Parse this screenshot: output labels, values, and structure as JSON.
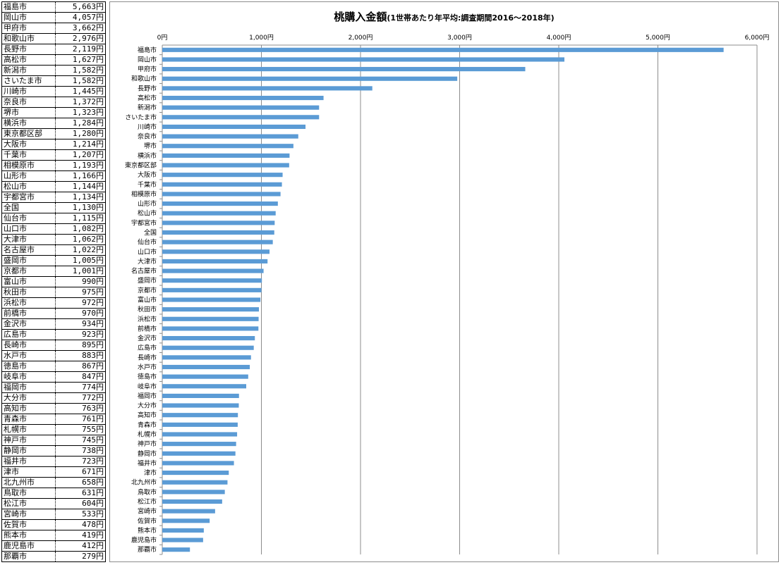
{
  "chart_data": {
    "type": "bar",
    "orientation": "horizontal",
    "title": "桃購入金額",
    "subtitle": "(1世帯あたり年平均:調査期間2016～2018年)",
    "xlim": [
      0,
      6000
    ],
    "x_ticks": [
      "0円",
      "1,000円",
      "2,000円",
      "3,000円",
      "4,000円",
      "5,000円",
      "6,000円"
    ],
    "x_tick_values": [
      0,
      1000,
      2000,
      3000,
      4000,
      5000,
      6000
    ],
    "grid": true,
    "bar_color": "#5b9bd5",
    "categories": [
      "福島市",
      "岡山市",
      "甲府市",
      "和歌山市",
      "長野市",
      "高松市",
      "新潟市",
      "さいたま市",
      "川崎市",
      "奈良市",
      "堺市",
      "横浜市",
      "東京都区部",
      "大阪市",
      "千葉市",
      "相模原市",
      "山形市",
      "松山市",
      "宇都宮市",
      "全国",
      "仙台市",
      "山口市",
      "大津市",
      "名古屋市",
      "盛岡市",
      "京都市",
      "富山市",
      "秋田市",
      "浜松市",
      "前橋市",
      "金沢市",
      "広島市",
      "長崎市",
      "水戸市",
      "徳島市",
      "岐阜市",
      "福岡市",
      "大分市",
      "高知市",
      "青森市",
      "札幌市",
      "神戸市",
      "静岡市",
      "福井市",
      "津市",
      "北九州市",
      "鳥取市",
      "松江市",
      "宮崎市",
      "佐賀市",
      "熊本市",
      "鹿児島市",
      "那覇市"
    ],
    "values": [
      5663,
      4057,
      3662,
      2976,
      2119,
      1627,
      1582,
      1582,
      1445,
      1372,
      1323,
      1284,
      1280,
      1214,
      1207,
      1193,
      1166,
      1144,
      1134,
      1130,
      1115,
      1082,
      1062,
      1022,
      1005,
      1001,
      990,
      975,
      972,
      970,
      934,
      923,
      895,
      883,
      867,
      847,
      774,
      772,
      763,
      761,
      755,
      745,
      738,
      723,
      671,
      658,
      631,
      604,
      533,
      478,
      419,
      412,
      279
    ]
  },
  "table": {
    "rows": [
      {
        "city": "福島市",
        "value": "5,663"
      },
      {
        "city": "岡山市",
        "value": "4,057"
      },
      {
        "city": "甲府市",
        "value": "3,662"
      },
      {
        "city": "和歌山市",
        "value": "2,976"
      },
      {
        "city": "長野市",
        "value": "2,119"
      },
      {
        "city": "高松市",
        "value": "1,627"
      },
      {
        "city": "新潟市",
        "value": "1,582"
      },
      {
        "city": "さいたま市",
        "value": "1,582"
      },
      {
        "city": "川崎市",
        "value": "1,445"
      },
      {
        "city": "奈良市",
        "value": "1,372"
      },
      {
        "city": "堺市",
        "value": "1,323"
      },
      {
        "city": "横浜市",
        "value": "1,284"
      },
      {
        "city": "東京都区部",
        "value": "1,280"
      },
      {
        "city": "大阪市",
        "value": "1,214"
      },
      {
        "city": "千葉市",
        "value": "1,207"
      },
      {
        "city": "相模原市",
        "value": "1,193"
      },
      {
        "city": "山形市",
        "value": "1,166"
      },
      {
        "city": "松山市",
        "value": "1,144"
      },
      {
        "city": "宇都宮市",
        "value": "1,134"
      },
      {
        "city": "全国",
        "value": "1,130"
      },
      {
        "city": "仙台市",
        "value": "1,115"
      },
      {
        "city": "山口市",
        "value": "1,082"
      },
      {
        "city": "大津市",
        "value": "1,062"
      },
      {
        "city": "名古屋市",
        "value": "1,022"
      },
      {
        "city": "盛岡市",
        "value": "1,005"
      },
      {
        "city": "京都市",
        "value": "1,001"
      },
      {
        "city": "富山市",
        "value": "990"
      },
      {
        "city": "秋田市",
        "value": "975"
      },
      {
        "city": "浜松市",
        "value": "972"
      },
      {
        "city": "前橋市",
        "value": "970"
      },
      {
        "city": "金沢市",
        "value": "934"
      },
      {
        "city": "広島市",
        "value": "923"
      },
      {
        "city": "長崎市",
        "value": "895"
      },
      {
        "city": "水戸市",
        "value": "883"
      },
      {
        "city": "徳島市",
        "value": "867"
      },
      {
        "city": "岐阜市",
        "value": "847"
      },
      {
        "city": "福岡市",
        "value": "774"
      },
      {
        "city": "大分市",
        "value": "772"
      },
      {
        "city": "高知市",
        "value": "763"
      },
      {
        "city": "青森市",
        "value": "761"
      },
      {
        "city": "札幌市",
        "value": "755"
      },
      {
        "city": "神戸市",
        "value": "745"
      },
      {
        "city": "静岡市",
        "value": "738"
      },
      {
        "city": "福井市",
        "value": "723"
      },
      {
        "city": "津市",
        "value": "671"
      },
      {
        "city": "北九州市",
        "value": "658"
      },
      {
        "city": "鳥取市",
        "value": "631"
      },
      {
        "city": "松江市",
        "value": "604"
      },
      {
        "city": "宮崎市",
        "value": "533"
      },
      {
        "city": "佐賀市",
        "value": "478"
      },
      {
        "city": "熊本市",
        "value": "419"
      },
      {
        "city": "鹿児島市",
        "value": "412"
      },
      {
        "city": "那覇市",
        "value": "279"
      }
    ],
    "unit": "円"
  }
}
